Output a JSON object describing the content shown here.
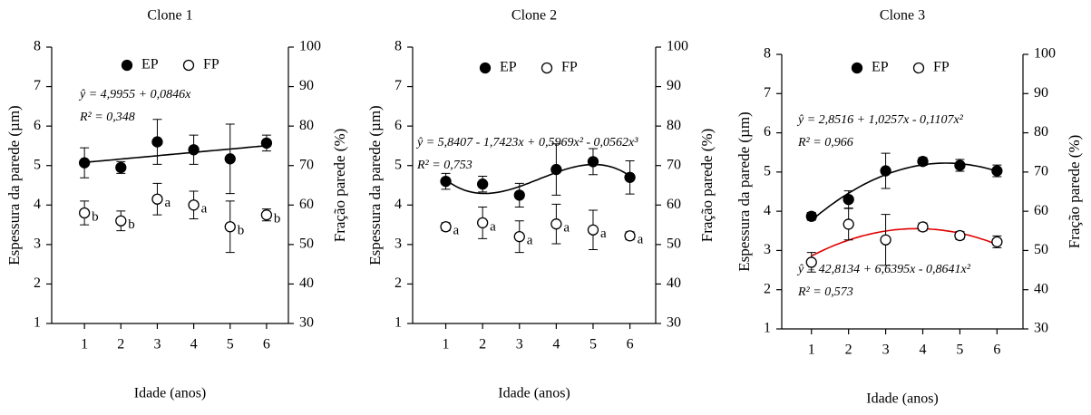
{
  "chart_data": [
    {
      "type": "scatter",
      "title": "Clone 1",
      "x_label": "Idade (anos)",
      "y_label": "Espessura da parede (µm)",
      "y2_label": "Fração parede (%)",
      "x": [
        1,
        2,
        3,
        4,
        5,
        6
      ],
      "xlim": [
        0.1,
        6.6
      ],
      "xticks": [
        1,
        2,
        3,
        4,
        5,
        6
      ],
      "ylim": [
        1,
        8
      ],
      "yticks": [
        1,
        2,
        3,
        4,
        5,
        6,
        7,
        8
      ],
      "y2lim": [
        30,
        100
      ],
      "y2ticks": [
        30,
        40,
        50,
        60,
        70,
        80,
        90,
        100
      ],
      "series": [
        {
          "name": "EP",
          "color": "#000000",
          "marker": "filled",
          "values": [
            5.07,
            4.95,
            5.6,
            5.4,
            5.17,
            5.57
          ],
          "errors": [
            0.38,
            0.15,
            0.57,
            0.37,
            0.88,
            0.2
          ]
        },
        {
          "name": "FP",
          "color": "#000000",
          "marker": "open",
          "axis": "y2",
          "values": [
            58,
            56,
            61.5,
            60,
            54.5,
            57.5
          ],
          "errors": [
            3,
            2.5,
            4,
            3.5,
            6.5,
            1.5
          ],
          "labels": [
            "b",
            "b",
            "a",
            "a",
            "b",
            "b"
          ]
        }
      ],
      "fits": [
        {
          "series": 0,
          "color": "#000000",
          "equation": "ŷ = 4,9955 + 0,0846x",
          "r2": "R² = 0,348",
          "coefficients": [
            4.9955,
            0.0846
          ]
        }
      ]
    },
    {
      "type": "scatter",
      "title": "Clone 2",
      "x_label": "Idade (anos)",
      "y_label": "Espessura da parede (µm)",
      "y2_label": "Fração parede (%)",
      "x": [
        1,
        2,
        3,
        4,
        5,
        6
      ],
      "xlim": [
        0.1,
        6.7
      ],
      "xticks": [
        1,
        2,
        3,
        4,
        5,
        6
      ],
      "ylim": [
        1,
        8
      ],
      "yticks": [
        1,
        2,
        3,
        4,
        5,
        6,
        7,
        8
      ],
      "y2lim": [
        30,
        100
      ],
      "y2ticks": [
        30,
        40,
        50,
        60,
        70,
        80,
        90,
        100
      ],
      "series": [
        {
          "name": "EP",
          "color": "#000000",
          "marker": "filled",
          "values": [
            4.6,
            4.53,
            4.25,
            4.9,
            5.1,
            4.7
          ],
          "errors": [
            0.2,
            0.2,
            0.3,
            0.65,
            0.33,
            0.42
          ]
        },
        {
          "name": "FP",
          "color": "#000000",
          "marker": "open",
          "axis": "y2",
          "values": [
            54.5,
            55.5,
            52,
            55.2,
            53.7,
            52.2
          ],
          "errors": [
            1,
            4,
            4,
            5,
            5,
            1
          ],
          "labels": [
            "a",
            "a",
            "a",
            "a",
            "a",
            "a"
          ]
        }
      ],
      "fits": [
        {
          "series": 0,
          "color": "#000000",
          "equation": "ŷ = 5,8407 - 1,7423x + 0,5969x² - 0,0562x³",
          "r2": "R² = 0,753",
          "coefficients": [
            5.8407,
            -1.7423,
            0.5969,
            -0.0562
          ]
        }
      ]
    },
    {
      "type": "scatter",
      "title": "Clone 3",
      "x_label": "Idade (anos)",
      "y_label": "Espessura da parede (µm)",
      "y2_label": "Fração parede (%)",
      "x": [
        1,
        2,
        3,
        4,
        5,
        6
      ],
      "xlim": [
        0.2,
        6.7
      ],
      "xticks": [
        1,
        2,
        3,
        4,
        5,
        6
      ],
      "ylim": [
        1,
        8
      ],
      "yticks": [
        1,
        2,
        3,
        4,
        5,
        6,
        7,
        8
      ],
      "y2lim": [
        30,
        100
      ],
      "y2ticks": [
        30,
        40,
        50,
        60,
        70,
        80,
        90,
        100
      ],
      "series": [
        {
          "name": "EP",
          "color": "#000000",
          "marker": "filled",
          "values": [
            3.87,
            4.3,
            5.03,
            5.27,
            5.17,
            5.03
          ],
          "errors": [
            0.1,
            0.22,
            0.45,
            0.1,
            0.15,
            0.15
          ]
        },
        {
          "name": "FP",
          "color": "#000000",
          "marker": "open",
          "axis": "y2",
          "values": [
            47,
            56.7,
            52.7,
            56,
            53.8,
            52.2
          ],
          "errors": [
            2.5,
            4,
            6.5,
            1,
            1,
            1.5
          ]
        }
      ],
      "fits": [
        {
          "series": 0,
          "color": "#000000",
          "equation": "ŷ = 2,8516 + 1,0257x - 0,1107x²",
          "r2": "R² = 0,966",
          "coefficients": [
            2.8516,
            1.0257,
            -0.1107
          ]
        },
        {
          "series": 1,
          "color": "#e00000",
          "equation": "ŷ = 42,8134 + 6,6395x - 0,8641x²",
          "r2": "R² = 0,573",
          "coefficients": [
            42.8134,
            6.6395,
            -0.8641
          ]
        }
      ]
    }
  ]
}
